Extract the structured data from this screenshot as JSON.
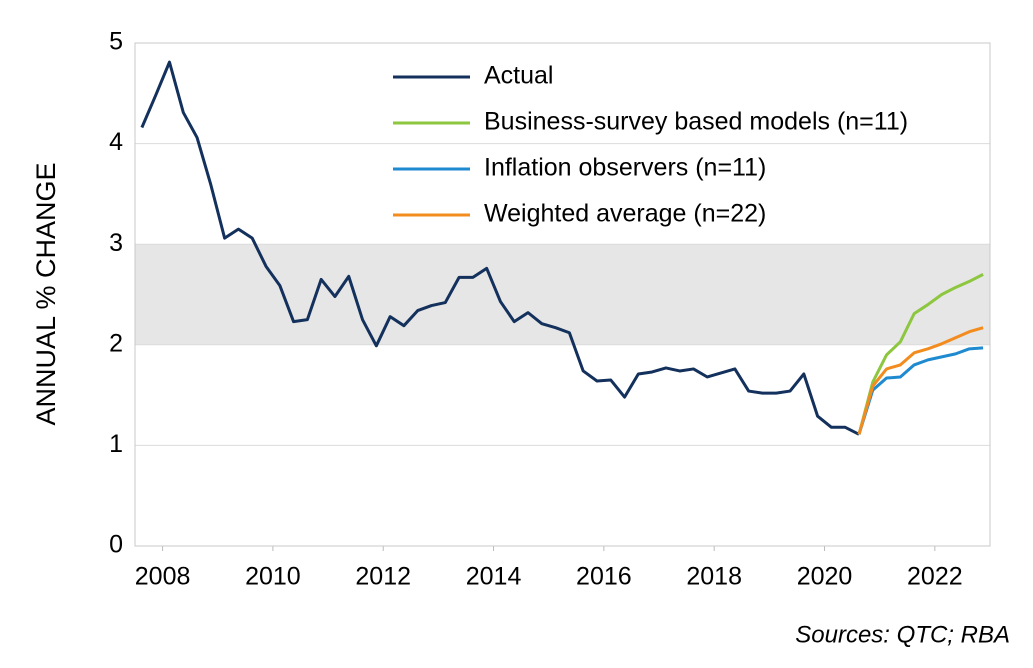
{
  "chart_data": {
    "type": "line",
    "y_label": "ANNUAL % CHANGE",
    "source": "Sources: QTC; RBA",
    "xlim": [
      2007.5,
      2023.0
    ],
    "ylim": [
      0,
      5
    ],
    "xticks": [
      2008,
      2010,
      2012,
      2014,
      2016,
      2018,
      2020,
      2022
    ],
    "yticks": [
      0,
      1,
      2,
      3,
      4,
      5
    ],
    "grid": true,
    "band": [
      2,
      3
    ],
    "band_color": "#e6e6e6",
    "legend": "top",
    "series": [
      {
        "name": "Actual",
        "color": "#13315c",
        "x": [
          2007.625,
          2007.875,
          2008.125,
          2008.375,
          2008.625,
          2008.875,
          2009.125,
          2009.375,
          2009.625,
          2009.875,
          2010.125,
          2010.375,
          2010.625,
          2010.875,
          2011.125,
          2011.375,
          2011.625,
          2011.875,
          2012.125,
          2012.375,
          2012.625,
          2012.875,
          2013.125,
          2013.375,
          2013.625,
          2013.875,
          2014.125,
          2014.375,
          2014.625,
          2014.875,
          2015.125,
          2015.375,
          2015.625,
          2015.875,
          2016.125,
          2016.375,
          2016.625,
          2016.875,
          2017.125,
          2017.375,
          2017.625,
          2017.875,
          2018.125,
          2018.375,
          2018.625,
          2018.875,
          2019.125,
          2019.375,
          2019.625,
          2019.875,
          2020.125,
          2020.375,
          2020.625
        ],
        "values": [
          4.16,
          4.48,
          4.81,
          4.31,
          4.06,
          3.59,
          3.06,
          3.15,
          3.06,
          2.78,
          2.59,
          2.23,
          2.25,
          2.65,
          2.48,
          2.68,
          2.25,
          1.99,
          2.28,
          2.19,
          2.34,
          2.39,
          2.42,
          2.67,
          2.67,
          2.76,
          2.43,
          2.23,
          2.32,
          2.21,
          2.17,
          2.12,
          1.74,
          1.64,
          1.65,
          1.48,
          1.71,
          1.73,
          1.77,
          1.74,
          1.76,
          1.68,
          1.72,
          1.76,
          1.54,
          1.52,
          1.52,
          1.54,
          1.71,
          1.29,
          1.18,
          1.18,
          1.11
        ]
      },
      {
        "name": "Business-survey based models (n=11)",
        "color": "#8dc63f",
        "x": [
          2020.625,
          2020.875,
          2021.125,
          2021.375,
          2021.625,
          2021.875,
          2022.125,
          2022.375,
          2022.625,
          2022.875
        ],
        "values": [
          1.11,
          1.63,
          1.9,
          2.03,
          2.31,
          2.4,
          2.5,
          2.57,
          2.63,
          2.7
        ]
      },
      {
        "name": "Inflation observers (n=11)",
        "color": "#1f8ad0",
        "x": [
          2020.625,
          2020.875,
          2021.125,
          2021.375,
          2021.625,
          2021.875,
          2022.125,
          2022.375,
          2022.625,
          2022.875
        ],
        "values": [
          1.11,
          1.55,
          1.67,
          1.68,
          1.8,
          1.85,
          1.88,
          1.91,
          1.96,
          1.97
        ]
      },
      {
        "name": "Weighted average (n=22)",
        "color": "#f28c1f",
        "x": [
          2020.625,
          2020.875,
          2021.125,
          2021.375,
          2021.625,
          2021.875,
          2022.125,
          2022.375,
          2022.625,
          2022.875
        ],
        "values": [
          1.11,
          1.59,
          1.76,
          1.8,
          1.92,
          1.96,
          2.01,
          2.07,
          2.13,
          2.17
        ]
      }
    ]
  }
}
